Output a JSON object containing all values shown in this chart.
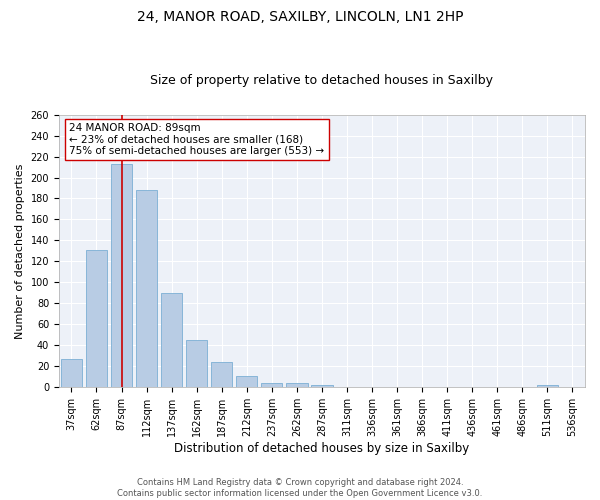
{
  "title_line1": "24, MANOR ROAD, SAXILBY, LINCOLN, LN1 2HP",
  "title_line2": "Size of property relative to detached houses in Saxilby",
  "xlabel": "Distribution of detached houses by size in Saxilby",
  "ylabel": "Number of detached properties",
  "categories": [
    "37sqm",
    "62sqm",
    "87sqm",
    "112sqm",
    "137sqm",
    "162sqm",
    "187sqm",
    "212sqm",
    "237sqm",
    "262sqm",
    "287sqm",
    "311sqm",
    "336sqm",
    "361sqm",
    "386sqm",
    "411sqm",
    "436sqm",
    "461sqm",
    "486sqm",
    "511sqm",
    "536sqm"
  ],
  "values": [
    27,
    131,
    213,
    188,
    90,
    45,
    24,
    11,
    4,
    4,
    2,
    0,
    0,
    0,
    0,
    0,
    0,
    0,
    0,
    2,
    0
  ],
  "bar_color": "#b8cce4",
  "bar_edgecolor": "#7bafd4",
  "vline_x": 2.0,
  "vline_color": "#cc0000",
  "annotation_text": "24 MANOR ROAD: 89sqm\n← 23% of detached houses are smaller (168)\n75% of semi-detached houses are larger (553) →",
  "annotation_box_color": "#ffffff",
  "annotation_box_edgecolor": "#cc0000",
  "ylim": [
    0,
    260
  ],
  "yticks": [
    0,
    20,
    40,
    60,
    80,
    100,
    120,
    140,
    160,
    180,
    200,
    220,
    240,
    260
  ],
  "background_color": "#edf1f8",
  "grid_color": "#ffffff",
  "footnote": "Contains HM Land Registry data © Crown copyright and database right 2024.\nContains public sector information licensed under the Open Government Licence v3.0.",
  "title_fontsize": 10,
  "subtitle_fontsize": 9,
  "xlabel_fontsize": 8.5,
  "ylabel_fontsize": 8,
  "tick_fontsize": 7,
  "annotation_fontsize": 7.5,
  "footnote_fontsize": 6
}
